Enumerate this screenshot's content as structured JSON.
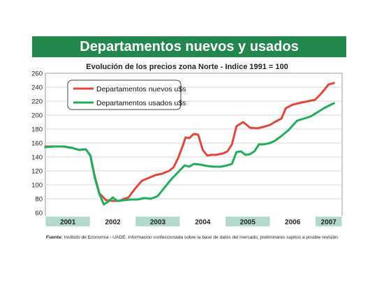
{
  "chart_data": {
    "type": "line",
    "title": "Departamentos nuevos y usados",
    "subtitle": "Evolución de los precios zona Norte - Indice 1991 = 100",
    "xlabel": "",
    "ylabel": "",
    "ylim": [
      60,
      260
    ],
    "yticks": [
      60,
      80,
      100,
      120,
      140,
      160,
      180,
      200,
      220,
      240,
      260
    ],
    "grid": true,
    "legend_position": "top-left",
    "years": [
      "2001",
      "2002",
      "2003",
      "2004",
      "2005",
      "2006",
      "2007"
    ],
    "x_range": [
      2001,
      2007.6
    ],
    "series": [
      {
        "name": "Departamentos nuevos u$s",
        "color": "#e2473b",
        "x": [
          2001.0,
          2001.2,
          2001.4,
          2001.6,
          2001.75,
          2001.9,
          2002.0,
          2002.1,
          2002.2,
          2002.35,
          2002.5,
          2002.65,
          2002.75,
          2002.85,
          2003.0,
          2003.15,
          2003.3,
          2003.45,
          2003.6,
          2003.75,
          2003.85,
          2003.95,
          2004.05,
          2004.12,
          2004.2,
          2004.3,
          2004.4,
          2004.5,
          2004.6,
          2004.7,
          2004.8,
          2004.95,
          2005.05,
          2005.15,
          2005.25,
          2005.4,
          2005.55,
          2005.7,
          2005.85,
          2006.0,
          2006.1,
          2006.25,
          2006.35,
          2006.5,
          2006.7,
          2006.85,
          2007.0,
          2007.15,
          2007.3,
          2007.42
        ],
        "values": [
          155,
          155,
          155,
          153,
          150,
          151,
          142,
          112,
          88,
          78,
          77,
          77,
          80,
          82,
          95,
          106,
          110,
          114,
          116,
          120,
          125,
          138,
          155,
          168,
          167,
          173,
          172,
          150,
          142,
          143,
          143,
          145,
          148,
          158,
          184,
          190,
          182,
          181,
          183,
          186,
          190,
          195,
          210,
          215,
          218,
          220,
          222,
          232,
          244,
          246
        ]
      },
      {
        "name": "Departamentos usados u$s",
        "color": "#1fae5c",
        "x": [
          2001.0,
          2001.2,
          2001.4,
          2001.6,
          2001.75,
          2001.9,
          2002.0,
          2002.1,
          2002.2,
          2002.3,
          2002.4,
          2002.5,
          2002.6,
          2002.75,
          2002.9,
          2003.05,
          2003.2,
          2003.35,
          2003.5,
          2003.65,
          2003.8,
          2003.95,
          2004.1,
          2004.2,
          2004.3,
          2004.45,
          2004.6,
          2004.75,
          2004.9,
          2005.05,
          2005.15,
          2005.25,
          2005.35,
          2005.45,
          2005.55,
          2005.65,
          2005.75,
          2005.85,
          2006.0,
          2006.1,
          2006.25,
          2006.4,
          2006.6,
          2006.75,
          2006.9,
          2007.05,
          2007.2,
          2007.35,
          2007.42
        ],
        "values": [
          154,
          155,
          155,
          153,
          150,
          151,
          142,
          110,
          87,
          72,
          76,
          82,
          77,
          78,
          79,
          79,
          81,
          80,
          84,
          96,
          108,
          118,
          128,
          126,
          130,
          129,
          127,
          126,
          126,
          128,
          130,
          147,
          148,
          143,
          144,
          148,
          158,
          158,
          160,
          163,
          170,
          178,
          192,
          195,
          198,
          204,
          210,
          215,
          217
        ]
      }
    ]
  },
  "footer": {
    "source_label": "Fuente:",
    "source_text": " Instituto de Economía - UADE.  Información confeccionada sobre la base de datos del mercado, preliminares sujetos a posible revisión."
  },
  "colors": {
    "title_bar": "#22874c",
    "title_text": "#ffffff",
    "year_band_dark": "#b3d9cc",
    "year_band_light": "#ffffff",
    "grid": "#d6d6d6"
  }
}
